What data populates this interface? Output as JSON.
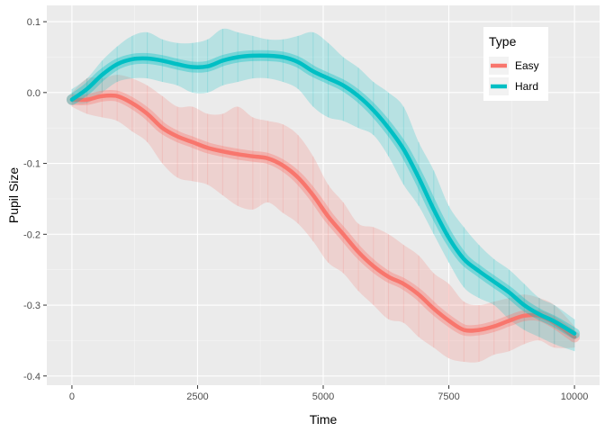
{
  "chart_data": {
    "type": "line",
    "title": "",
    "xlabel": "Time",
    "ylabel": "Pupil Size",
    "xlim": [
      -500,
      10500
    ],
    "ylim": [
      -0.413,
      0.123
    ],
    "x_ticks": [
      0,
      2500,
      5000,
      7500,
      10000
    ],
    "x_tick_labels": [
      "0",
      "2500",
      "5000",
      "7500",
      "10000"
    ],
    "y_ticks": [
      0.1,
      0.0,
      -0.1,
      -0.2,
      -0.3,
      -0.4
    ],
    "y_tick_labels": [
      "0.1",
      "0.0",
      "-0.1",
      "-0.2",
      "-0.3",
      "-0.4"
    ],
    "grid": true,
    "legend": {
      "title": "Type",
      "position": "top-right"
    },
    "series": [
      {
        "name": "Easy",
        "color": "#F8766D",
        "x": [
          0,
          300,
          600,
          900,
          1200,
          1500,
          1800,
          2100,
          2400,
          2700,
          3000,
          3300,
          3600,
          3900,
          4200,
          4500,
          4800,
          5100,
          5400,
          5700,
          6000,
          6300,
          6600,
          6900,
          7200,
          7500,
          7800,
          8100,
          8400,
          8700,
          9000,
          9300,
          9600,
          10000
        ],
        "y": [
          -0.01,
          -0.01,
          -0.005,
          -0.005,
          -0.015,
          -0.03,
          -0.05,
          -0.062,
          -0.07,
          -0.078,
          -0.083,
          -0.087,
          -0.09,
          -0.093,
          -0.103,
          -0.12,
          -0.145,
          -0.175,
          -0.2,
          -0.225,
          -0.245,
          -0.26,
          -0.27,
          -0.285,
          -0.305,
          -0.322,
          -0.335,
          -0.335,
          -0.33,
          -0.322,
          -0.315,
          -0.315,
          -0.325,
          -0.345
        ],
        "upper": [
          0.0,
          0.02,
          0.02,
          0.025,
          0.02,
          0.01,
          -0.005,
          -0.02,
          -0.02,
          -0.03,
          -0.03,
          -0.02,
          -0.035,
          -0.04,
          -0.045,
          -0.06,
          -0.09,
          -0.13,
          -0.155,
          -0.185,
          -0.19,
          -0.2,
          -0.215,
          -0.23,
          -0.255,
          -0.27,
          -0.295,
          -0.3,
          -0.295,
          -0.29,
          -0.285,
          -0.29,
          -0.3,
          -0.33
        ],
        "lower": [
          -0.02,
          -0.03,
          -0.035,
          -0.04,
          -0.055,
          -0.07,
          -0.1,
          -0.12,
          -0.125,
          -0.13,
          -0.145,
          -0.16,
          -0.165,
          -0.155,
          -0.17,
          -0.185,
          -0.21,
          -0.24,
          -0.255,
          -0.28,
          -0.3,
          -0.32,
          -0.325,
          -0.345,
          -0.36,
          -0.375,
          -0.38,
          -0.38,
          -0.37,
          -0.365,
          -0.355,
          -0.35,
          -0.36,
          -0.36
        ]
      },
      {
        "name": "Hard",
        "color": "#00BFC4",
        "x": [
          0,
          300,
          600,
          900,
          1200,
          1500,
          1800,
          2100,
          2400,
          2700,
          3000,
          3300,
          3600,
          3900,
          4200,
          4500,
          4800,
          5100,
          5400,
          5700,
          6000,
          6300,
          6600,
          6900,
          7200,
          7500,
          7800,
          8100,
          8400,
          8700,
          9000,
          9300,
          9600,
          10000
        ],
        "y": [
          -0.01,
          0.005,
          0.025,
          0.04,
          0.047,
          0.048,
          0.045,
          0.04,
          0.036,
          0.037,
          0.045,
          0.05,
          0.052,
          0.052,
          0.05,
          0.043,
          0.03,
          0.02,
          0.01,
          -0.005,
          -0.025,
          -0.05,
          -0.08,
          -0.12,
          -0.165,
          -0.205,
          -0.235,
          -0.252,
          -0.267,
          -0.282,
          -0.3,
          -0.313,
          -0.323,
          -0.34
        ],
        "upper": [
          0.005,
          0.02,
          0.045,
          0.065,
          0.08,
          0.085,
          0.075,
          0.07,
          0.07,
          0.075,
          0.09,
          0.085,
          0.08,
          0.075,
          0.075,
          0.08,
          0.085,
          0.07,
          0.05,
          0.035,
          0.015,
          0.0,
          -0.02,
          -0.07,
          -0.11,
          -0.16,
          -0.19,
          -0.215,
          -0.235,
          -0.25,
          -0.27,
          -0.29,
          -0.3,
          -0.32
        ],
        "lower": [
          -0.015,
          -0.015,
          0.0,
          0.015,
          0.02,
          0.02,
          0.015,
          0.01,
          0.0,
          0.0,
          0.01,
          0.015,
          0.02,
          0.02,
          0.015,
          0.005,
          -0.02,
          -0.035,
          -0.04,
          -0.05,
          -0.06,
          -0.09,
          -0.13,
          -0.16,
          -0.2,
          -0.24,
          -0.275,
          -0.29,
          -0.3,
          -0.32,
          -0.335,
          -0.345,
          -0.355,
          -0.365
        ]
      }
    ]
  }
}
